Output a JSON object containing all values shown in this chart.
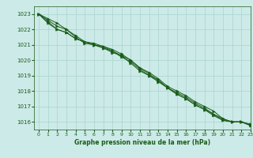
{
  "title": "Graphe pression niveau de la mer (hPa)",
  "background_color": "#cceae7",
  "grid_color": "#aad4d0",
  "line_color": "#1a5c1a",
  "xlim": [
    -0.5,
    23
  ],
  "ylim": [
    1015.5,
    1023.5
  ],
  "yticks": [
    1016,
    1017,
    1018,
    1019,
    1020,
    1021,
    1022,
    1023
  ],
  "xticks": [
    0,
    1,
    2,
    3,
    4,
    5,
    6,
    7,
    8,
    9,
    10,
    11,
    12,
    13,
    14,
    15,
    16,
    17,
    18,
    19,
    20,
    21,
    22,
    23
  ],
  "line1": [
    1023.0,
    1022.6,
    1022.2,
    1022.0,
    1021.5,
    1021.1,
    1021.0,
    1020.8,
    1020.5,
    1020.3,
    1020.0,
    1019.5,
    1019.2,
    1018.8,
    1018.3,
    1018.0,
    1017.7,
    1017.3,
    1017.0,
    1016.7,
    1016.2,
    1016.0,
    1016.0,
    1015.8
  ],
  "line2": [
    1023.0,
    1022.7,
    1022.4,
    1022.0,
    1021.6,
    1021.2,
    1021.1,
    1020.9,
    1020.6,
    1020.2,
    1019.9,
    1019.4,
    1019.0,
    1018.6,
    1018.2,
    1017.9,
    1017.6,
    1017.2,
    1016.9,
    1016.5,
    1016.1,
    1016.0,
    1016.0,
    1015.8
  ],
  "line3": [
    1023.0,
    1022.5,
    1022.0,
    1021.8,
    1021.4,
    1021.2,
    1021.0,
    1020.8,
    1020.6,
    1020.3,
    1019.8,
    1019.3,
    1019.0,
    1018.7,
    1018.2,
    1017.8,
    1017.5,
    1017.1,
    1016.8,
    1016.4,
    1016.1,
    1016.0,
    1016.0,
    1015.75
  ],
  "line4": [
    1023.0,
    1022.4,
    1022.0,
    1021.8,
    1021.4,
    1021.2,
    1021.0,
    1020.9,
    1020.7,
    1020.4,
    1020.0,
    1019.5,
    1019.1,
    1018.7,
    1018.2,
    1017.8,
    1017.5,
    1017.1,
    1016.8,
    1016.5,
    1016.2,
    1016.0,
    1016.0,
    1015.85
  ]
}
